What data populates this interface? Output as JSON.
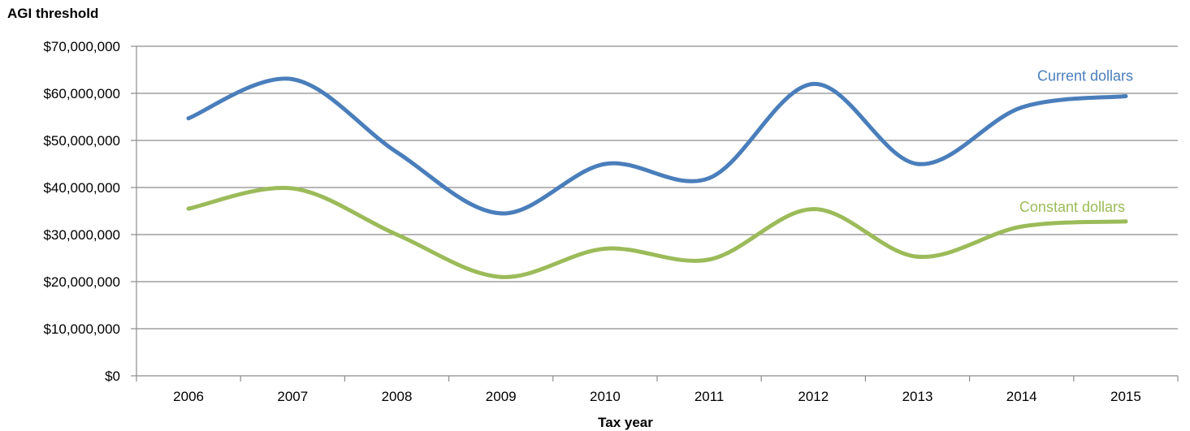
{
  "chart_data": {
    "type": "line",
    "title": "",
    "xlabel": "Tax year",
    "ylabel": "AGI threshold",
    "categories": [
      "2006",
      "2007",
      "2008",
      "2009",
      "2010",
      "2011",
      "2012",
      "2013",
      "2014",
      "2015"
    ],
    "ylim": [
      0,
      70000000
    ],
    "yticks": [
      0,
      10000000,
      20000000,
      30000000,
      40000000,
      50000000,
      60000000,
      70000000
    ],
    "ytick_labels": [
      "$0",
      "$10,000,000",
      "$20,000,000",
      "$30,000,000",
      "$40,000,000",
      "$50,000,000",
      "$60,000,000",
      "$70,000,000"
    ],
    "grid": true,
    "series": [
      {
        "name": "Current dollars",
        "color": "#4A7EBB",
        "values": [
          54700000,
          63000000,
          47500000,
          34500000,
          45000000,
          42000000,
          62000000,
          45000000,
          57000000,
          59400000
        ]
      },
      {
        "name": "Constant dollars",
        "color": "#9BBB59",
        "values": [
          35500000,
          39800000,
          30000000,
          21000000,
          27000000,
          24700000,
          35400000,
          25300000,
          31700000,
          32800000
        ]
      }
    ]
  }
}
